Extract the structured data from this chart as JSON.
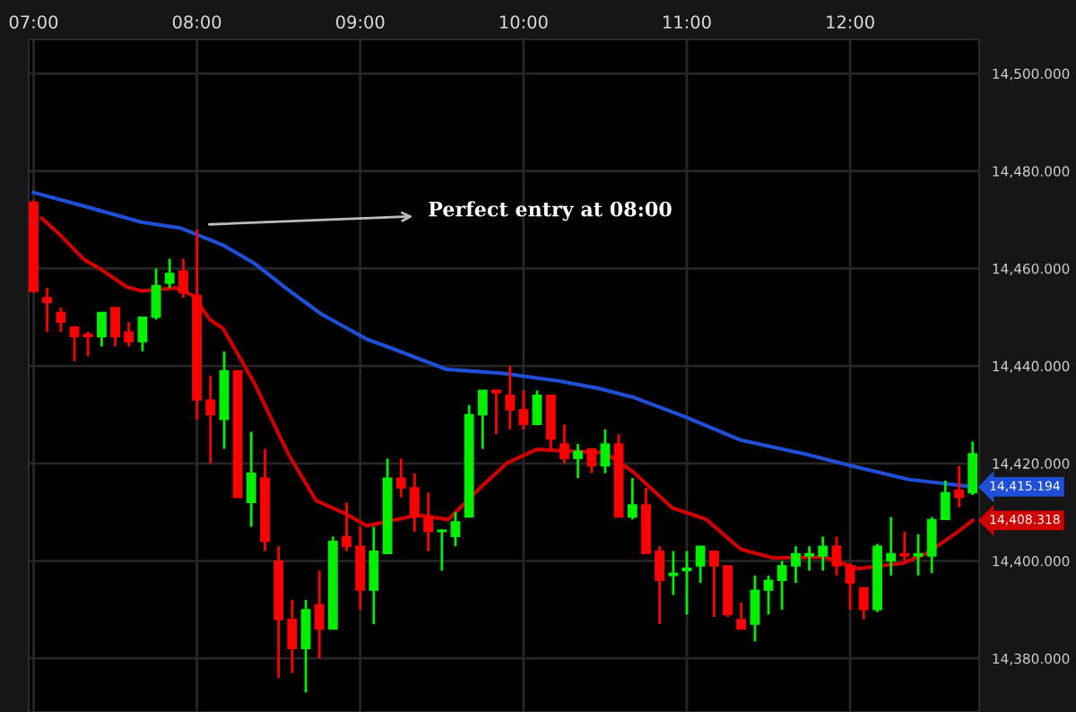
{
  "chart_data": {
    "type": "candlestick",
    "x": [
      7,
      7.083,
      7.167,
      7.25,
      7.333,
      7.417,
      7.5,
      7.583,
      7.667,
      7.75,
      7.833,
      7.917,
      8,
      8.083,
      8.167,
      8.25,
      8.333,
      8.417,
      8.5,
      8.583,
      8.667,
      8.75,
      8.833,
      8.917,
      9,
      9.083,
      9.167,
      9.25,
      9.333,
      9.417,
      9.5,
      9.583,
      9.667,
      9.75,
      9.833,
      9.917,
      10,
      10.083,
      10.167,
      10.25,
      10.333,
      10.417,
      10.5,
      10.583,
      10.667,
      10.75,
      10.833,
      10.917,
      11,
      11.083,
      11.167,
      11.25,
      11.333,
      11.417,
      11.5,
      11.583,
      11.667,
      11.75,
      11.833,
      11.917,
      12,
      12.083,
      12.167,
      12.25,
      12.333,
      12.417,
      12.5,
      12.583,
      12.667,
      12.75
    ],
    "ohlc": [
      [
        14473.6,
        14474,
        14455,
        14455.3
      ],
      [
        14454,
        14456,
        14447,
        14453
      ],
      [
        14451,
        14452,
        14447,
        14449
      ],
      [
        14448,
        14448,
        14441,
        14446
      ],
      [
        14446.5,
        14447,
        14442,
        14446
      ],
      [
        14446,
        14451,
        14444,
        14451
      ],
      [
        14452,
        14452,
        14444,
        14446
      ],
      [
        14447,
        14449,
        14444,
        14445
      ],
      [
        14445,
        14450,
        14443,
        14450
      ],
      [
        14450,
        14460,
        14449.5,
        14456.5
      ],
      [
        14457,
        14462,
        14456,
        14459
      ],
      [
        14459.5,
        14462,
        14454,
        14455
      ],
      [
        14454.5,
        14468,
        14429,
        14433
      ],
      [
        14433,
        14438,
        14420,
        14430
      ],
      [
        14429,
        14443,
        14423,
        14439
      ],
      [
        14439,
        14439,
        14413,
        14413
      ],
      [
        14412,
        14426.5,
        14407,
        14418
      ],
      [
        14417,
        14423,
        14402,
        14404
      ],
      [
        14400,
        14403,
        14376,
        14388
      ],
      [
        14388,
        14392,
        14377,
        14382
      ],
      [
        14382,
        14392,
        14373,
        14390
      ],
      [
        14391,
        14398,
        14380,
        14386
      ],
      [
        14386,
        14405,
        14386,
        14404
      ],
      [
        14405,
        14412,
        14402,
        14403
      ],
      [
        14403,
        14407,
        14390,
        14394
      ],
      [
        14394,
        14407,
        14387,
        14402
      ],
      [
        14401.5,
        14421,
        14401.5,
        14417
      ],
      [
        14417,
        14421,
        14413,
        14415
      ],
      [
        14415,
        14418,
        14406,
        14409
      ],
      [
        14409,
        14414,
        14402,
        14406
      ],
      [
        14406,
        14406.5,
        14398,
        14406.3
      ],
      [
        14405,
        14410,
        14403,
        14408
      ],
      [
        14409,
        14432,
        14409,
        14430
      ],
      [
        14430,
        14435,
        14423,
        14435
      ],
      [
        14435,
        14435,
        14426,
        14434.5
      ],
      [
        14434,
        14440,
        14427,
        14431
      ],
      [
        14431,
        14435,
        14427,
        14428
      ],
      [
        14428,
        14435,
        14428,
        14434
      ],
      [
        14434,
        14434,
        14423,
        14425
      ],
      [
        14424,
        14428,
        14420,
        14421
      ],
      [
        14421,
        14424,
        14417,
        14422.5
      ],
      [
        14423,
        14423,
        14418,
        14419.5
      ],
      [
        14419.5,
        14427,
        14418,
        14424
      ],
      [
        14424,
        14426,
        14409,
        14409
      ],
      [
        14409,
        14417,
        14408.5,
        14411.5
      ],
      [
        14411.5,
        14415,
        14401.5,
        14401.5
      ],
      [
        14402,
        14403,
        14387,
        14396
      ],
      [
        14397,
        14402,
        14393,
        14397.5
      ],
      [
        14398,
        14402,
        14389,
        14398.5
      ],
      [
        14399,
        14403,
        14395.5,
        14403
      ],
      [
        14402,
        14402,
        14388.5,
        14399
      ],
      [
        14399,
        14399,
        14388.5,
        14389
      ],
      [
        14388,
        14391.5,
        14386,
        14386
      ],
      [
        14387,
        14397,
        14383.5,
        14394
      ],
      [
        14394,
        14397,
        14389,
        14396
      ],
      [
        14396,
        14400,
        14390,
        14399
      ],
      [
        14399,
        14403,
        14395.5,
        14401.5
      ],
      [
        14401,
        14403,
        14398,
        14401.5
      ],
      [
        14401,
        14405,
        14398,
        14403
      ],
      [
        14403,
        14405,
        14397,
        14399
      ],
      [
        14399,
        14399.5,
        14390,
        14395.5
      ],
      [
        14394.5,
        14394.5,
        14388,
        14390
      ],
      [
        14390,
        14403.5,
        14389.5,
        14403
      ],
      [
        14400,
        14409,
        14397,
        14401.5
      ],
      [
        14401.5,
        14406,
        14400,
        14401
      ],
      [
        14401,
        14405.5,
        14397,
        14401.5
      ],
      [
        14401,
        14409,
        14397.5,
        14408.5
      ],
      [
        14408.5,
        14416.5,
        14408.5,
        14414
      ],
      [
        14414.5,
        14419.5,
        14411,
        14413
      ],
      [
        14414,
        14424.5,
        14413.5,
        14422
      ]
    ],
    "colors": [
      "#ff0000",
      "#ff0000",
      "#ff0000",
      "#ff0000",
      "#ff0000",
      "#00f000",
      "#ff0000",
      "#ff0000",
      "#00f000",
      "#00f000",
      "#00f000",
      "#ff0000",
      "#ff0000",
      "#ff0000",
      "#00f000",
      "#ff0000",
      "#00f000",
      "#ff0000",
      "#ff0000",
      "#ff0000",
      "#00f000",
      "#ff0000",
      "#00f000",
      "#ff0000",
      "#ff0000",
      "#00f000",
      "#00f000",
      "#ff0000",
      "#ff0000",
      "#ff0000",
      "#00f000",
      "#00f000",
      "#00f000",
      "#00f000",
      "#ff0000",
      "#ff0000",
      "#ff0000",
      "#00f000",
      "#ff0000",
      "#ff0000",
      "#00f000",
      "#ff0000",
      "#00f000",
      "#ff0000",
      "#00f000",
      "#ff0000",
      "#ff0000",
      "#00f000",
      "#00f000",
      "#00f000",
      "#ff0000",
      "#ff0000",
      "#ff0000",
      "#00f000",
      "#00f000",
      "#00f000",
      "#00f000",
      "#00f000",
      "#00f000",
      "#ff0000",
      "#ff0000",
      "#ff0000",
      "#00f000",
      "#00f000",
      "#ff0000",
      "#00f000",
      "#00f000",
      "#00f000",
      "#ff0000",
      "#00f000"
    ],
    "series": [
      {
        "type": "line",
        "color": "#1f4fd6",
        "x": [
          7,
          7.31,
          7.66,
          7.9,
          8.16,
          8.35,
          8.56,
          8.76,
          9.04,
          9.18,
          9.53,
          9.87,
          10.22,
          10.46,
          10.67,
          10.98,
          11.33,
          11.74,
          12.02,
          12.36,
          12.75
        ],
        "values": [
          14475.6,
          14472.8,
          14469.5,
          14468.3,
          14464.8,
          14461.1,
          14455.6,
          14450.7,
          14445.5,
          14443.8,
          14439.3,
          14438.5,
          14436.9,
          14435.4,
          14433.6,
          14429.7,
          14424.8,
          14421.8,
          14419.4,
          14416.7,
          14415.194
        ],
        "value_labels": [
          null,
          null,
          null,
          null,
          null,
          null,
          null,
          null,
          null,
          null,
          null,
          null,
          null,
          null,
          null,
          null,
          null,
          null,
          null,
          null,
          "14,415.194"
        ]
      },
      {
        "type": "line",
        "color": "#d00000",
        "x": [
          7.05,
          7.15,
          7.31,
          7.41,
          7.57,
          7.66,
          7.87,
          7.98,
          8.08,
          8.16,
          8.35,
          8.56,
          8.73,
          8.91,
          9.04,
          9.35,
          9.54,
          9.74,
          9.9,
          10.08,
          10.29,
          10.5,
          10.67,
          10.91,
          11.12,
          11.33,
          11.53,
          11.84,
          12.05,
          12.33,
          12.47,
          12.64,
          12.75
        ],
        "values": [
          14470.3,
          14467.3,
          14461.8,
          14459.9,
          14456.2,
          14455.4,
          14456.0,
          14454.4,
          14449.5,
          14447.7,
          14436.6,
          14421.9,
          14412.4,
          14409.7,
          14407.2,
          14409.4,
          14408.5,
          14415.2,
          14420.1,
          14422.9,
          14422.5,
          14422.2,
          14418.3,
          14410.9,
          14408.5,
          14402.4,
          14400.6,
          14400.8,
          14398.4,
          14399.6,
          14401.6,
          14405.5,
          14408.318
        ],
        "value_labels": [
          null,
          null,
          null,
          null,
          null,
          null,
          null,
          null,
          null,
          null,
          null,
          null,
          null,
          null,
          null,
          null,
          null,
          null,
          null,
          null,
          null,
          null,
          null,
          null,
          null,
          null,
          null,
          null,
          null,
          null,
          null,
          null,
          "14,408.318"
        ]
      }
    ],
    "annotations": [
      "Perfect entry at 08:00"
    ],
    "xlim": [
      6.97,
      12.79
    ],
    "xticks": [
      {
        "value": 7,
        "label": "07:00"
      },
      {
        "value": 8,
        "label": "08:00"
      },
      {
        "value": 9,
        "label": "09:00"
      },
      {
        "value": 10,
        "label": "10:00"
      },
      {
        "value": 11,
        "label": "11:00"
      },
      {
        "value": 12,
        "label": "12:00"
      }
    ],
    "ylim": [
      14369,
      14507
    ],
    "yticks": [
      {
        "value": 14380,
        "label": "14,380.000"
      },
      {
        "value": 14400,
        "label": "14,400.000"
      },
      {
        "value": 14420,
        "label": "14,420.000"
      },
      {
        "value": 14440,
        "label": "14,440.000"
      },
      {
        "value": 14460,
        "label": "14,460.000"
      },
      {
        "value": 14480,
        "label": "14,480.000"
      },
      {
        "value": 14500,
        "label": "14,500.000"
      }
    ],
    "grid": true
  }
}
